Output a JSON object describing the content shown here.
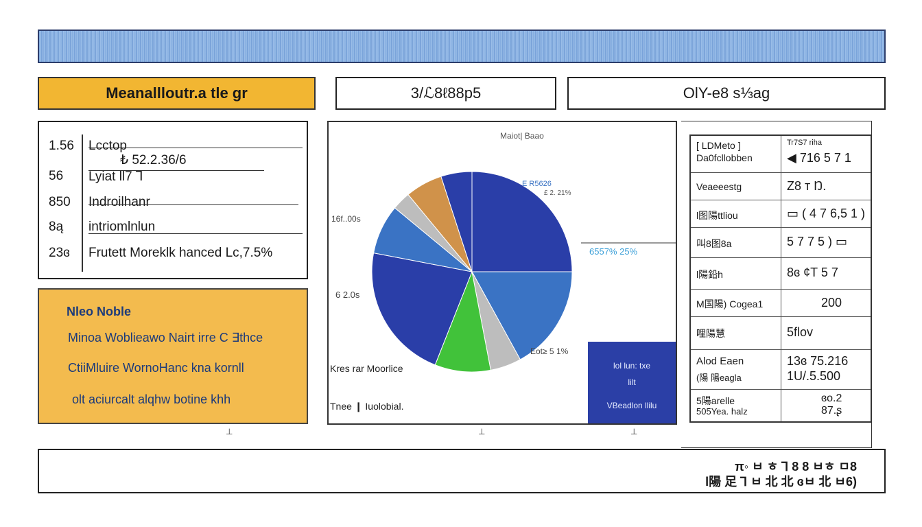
{
  "headers": {
    "left": "Meanallloutr.a tle gr",
    "middle": "3/ℒ8ℓ88p5",
    "right": "OlY-e8 s⅓ag"
  },
  "left_table": {
    "rows": [
      {
        "num": "1.56",
        "text": "Lcctop"
      },
      {
        "num": "",
        "text": "₺ 52.2.36/6"
      },
      {
        "num": "56",
        "text": "Lyiat ll7 ⅂"
      },
      {
        "num": "850",
        "text": "Indroilhanr"
      },
      {
        "num": "8ą",
        "text": "intriomlnlun"
      },
      {
        "num": "23ɞ",
        "text": "Frutett Moreklk hanced Lc,7.5%"
      }
    ]
  },
  "note": {
    "title": "Nleo Noble",
    "lines": [
      "Minoa Woblieawo Nairt irre C ∃thce",
      "CtiiMluire WornoHanc kna kornll",
      "olt aciurcalt alqhw botine   khh"
    ]
  },
  "chart_data": {
    "type": "pie",
    "title": "Maiot| Baao",
    "slices": [
      {
        "label": "",
        "value": 25,
        "color": "#2a3ea8"
      },
      {
        "label": "",
        "value": 17,
        "color": "#3a73c4"
      },
      {
        "label": "",
        "value": 5,
        "color": "#bdbdbd"
      },
      {
        "label": "",
        "value": 9,
        "color": "#41c23a"
      },
      {
        "label": "",
        "value": 22,
        "color": "#2a3ea8"
      },
      {
        "label": "",
        "value": 8,
        "color": "#3a73c4"
      },
      {
        "label": "",
        "value": 3,
        "color": "#bdbdbd"
      },
      {
        "label": "",
        "value": 6,
        "color": "#d0924a"
      },
      {
        "label": "",
        "value": 5,
        "color": "#2a3ea8"
      }
    ],
    "annotations": {
      "top_right_1": "E R5626",
      "top_right_2": "£ 2. 21%",
      "left_top": "16f..00s",
      "left_mid": "6 2.0s",
      "right_mid": "6557% 25%",
      "bottom_right": "Eot≥ 5 1%"
    },
    "legend": [
      {
        "label": "Kres rar Moorlice"
      },
      {
        "label": "Tnee ❙ Iuolobial."
      }
    ]
  },
  "blue_panel": {
    "line1": "lol lun: txe",
    "line2": "lilt",
    "line3": "VBeadlon llilu"
  },
  "right_table": {
    "rows": [
      {
        "c1a": "[ LDMeto ]",
        "c1b": "Da0fcllobben",
        "c2a": "Tr7S7 riha",
        "c2b": "◀ 716 5 7 1"
      },
      {
        "c1a": "Veaeeestg",
        "c1b": "",
        "c2a": "Z8  т Ŋ.",
        "c2b": ""
      },
      {
        "c1a": "l图陽ttliou",
        "c1b": "",
        "c2a": "▭ ( 4 7 6,5 1 )",
        "c2b": ""
      },
      {
        "c1a": "叫8图8a",
        "c1b": "",
        "c2a": "5 7 7 5 ) ▭",
        "c2b": ""
      },
      {
        "c1a": "l陽鉛h",
        "c1b": "",
        "c2a": "8ɞ  ¢T 5 7",
        "c2b": ""
      },
      {
        "c1a": "M国陽) Cogea1",
        "c1b": "",
        "c2a": "200",
        "c2b": ""
      },
      {
        "c1a": "哩陽慧",
        "c1b": "",
        "c2a": "5flov",
        "c2b": ""
      },
      {
        "c1a": "Alod Eaen",
        "c1b": "(陽 陽eagla",
        "c2a": "13ɞ 75.216",
        "c2b": "1U/.5.500"
      },
      {
        "c1a": "5陽arelle",
        "c1b": "505Yea. halz",
        "c2a": "ɞo.2",
        "c2b": "87.ʂ"
      }
    ]
  },
  "footer": {
    "line1": "π◦ ㅂ ㅎ ⅂ 8 8    ㅂㅎ ㅁ8",
    "line2": "l陽 足 ⅂ ㅂ 北 北 ɞㅂ 北 ㅂ6)"
  }
}
